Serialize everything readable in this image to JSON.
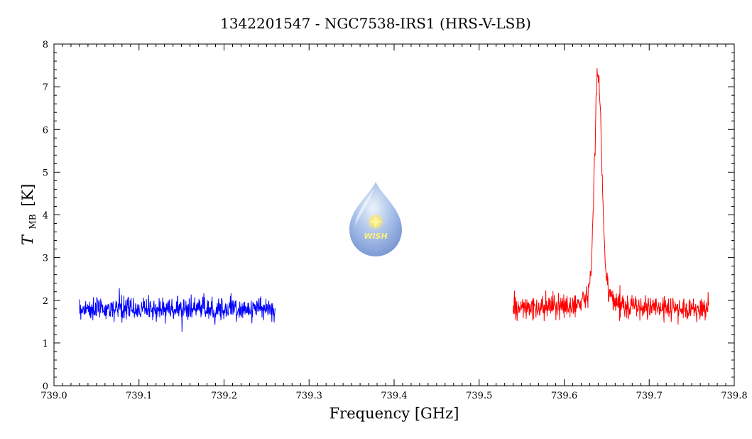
{
  "chart_data": {
    "type": "line",
    "title": "1342201547 - NGC7538-IRS1 (HRS-V-LSB)",
    "xlabel": "Frequency [GHz]",
    "ylabel": {
      "symbol": "T",
      "subscript": "MB",
      "unit": "[K]"
    },
    "xlim": [
      739.0,
      739.8
    ],
    "ylim": [
      0,
      8
    ],
    "xticks": [
      "739.0",
      "739.1",
      "739.2",
      "739.3",
      "739.4",
      "739.5",
      "739.6",
      "739.7",
      "739.8"
    ],
    "yticks": [
      "0",
      "1",
      "2",
      "3",
      "4",
      "5",
      "6",
      "7",
      "8"
    ],
    "grid": false,
    "series": [
      {
        "color": "#0000ff",
        "x_range": [
          739.03,
          739.26
        ],
        "baseline": 1.8,
        "noise_amplitude": 0.3,
        "points": 600
      },
      {
        "color": "#ff0000",
        "x_range": [
          739.54,
          739.77
        ],
        "baseline": 1.8,
        "noise_amplitude": 0.3,
        "points": 600,
        "peak": {
          "x": 739.64,
          "y": 7.3
        }
      }
    ]
  },
  "logo": {
    "text": "WISH"
  }
}
